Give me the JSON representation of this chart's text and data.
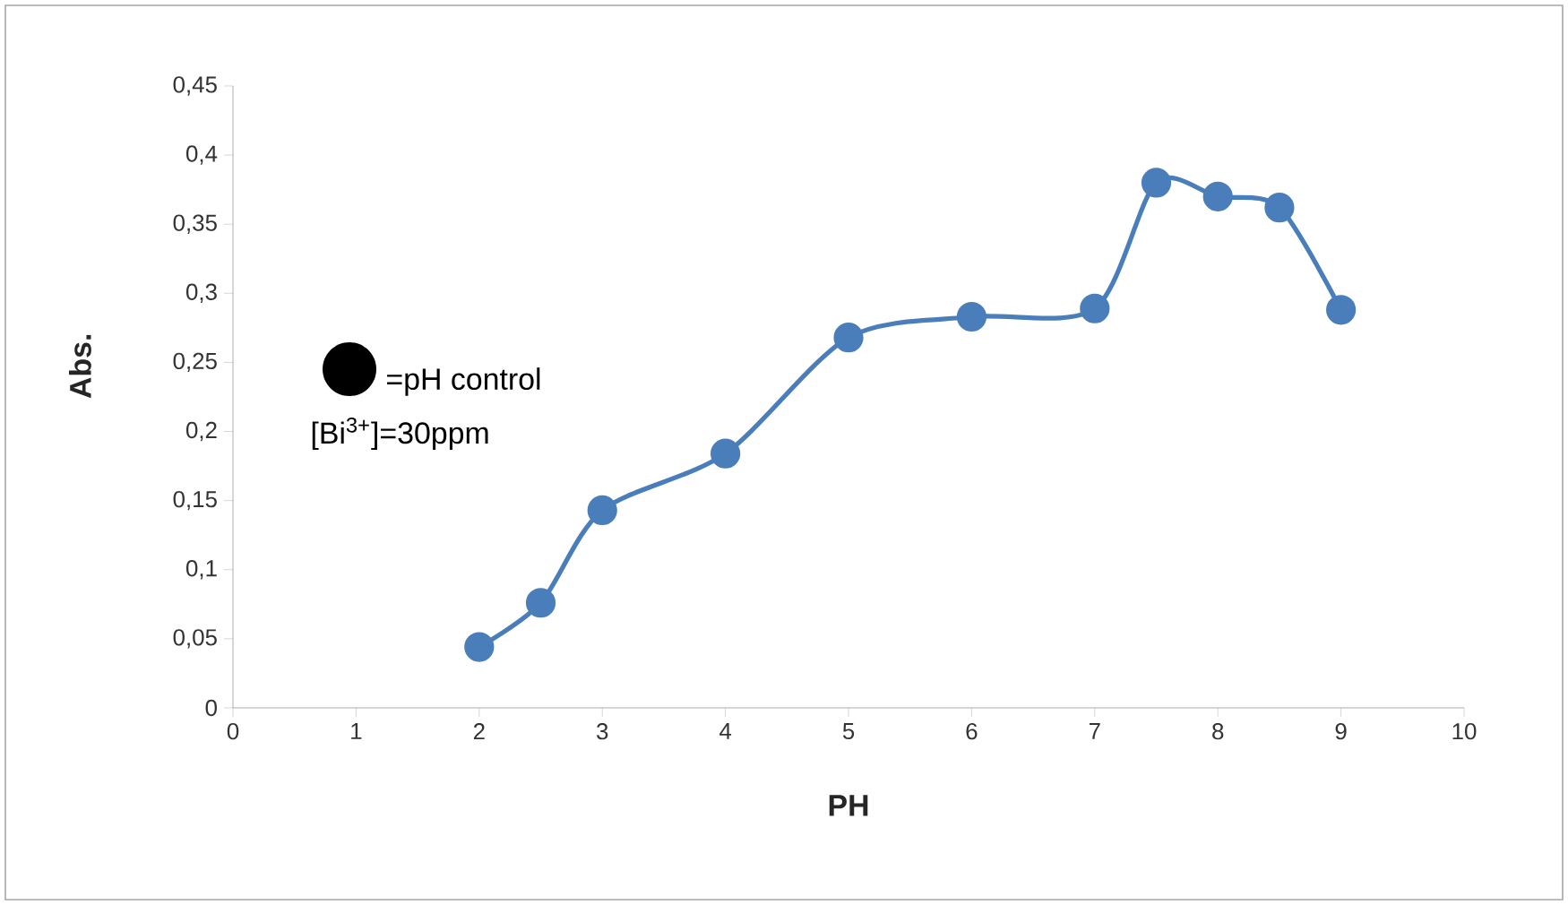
{
  "chart_data": {
    "type": "line",
    "xlabel": "PH",
    "ylabel": "Abs.",
    "x": [
      2,
      2.5,
      3,
      4,
      5,
      6,
      7,
      7.5,
      8,
      8.5,
      9
    ],
    "series": [
      {
        "color": "#4a7ebb",
        "values": [
          0.044,
          0.076,
          0.143,
          0.184,
          0.268,
          0.283,
          0.289,
          0.38,
          0.37,
          0.362,
          0.288
        ]
      }
    ],
    "xlim": [
      0,
      10
    ],
    "xticks": [
      0,
      1,
      2,
      3,
      4,
      5,
      6,
      7,
      8,
      9,
      10
    ],
    "ylim": [
      0,
      0.45
    ],
    "yticks": [
      0,
      {
        "value": 0.05,
        "label": "0,05"
      },
      {
        "value": 0.1,
        "label": "0,1"
      },
      {
        "value": 0.15,
        "label": "0,15"
      },
      {
        "value": 0.2,
        "label": "0,2"
      },
      {
        "value": 0.25,
        "label": "0,25"
      },
      {
        "value": 0.3,
        "label": "0,3"
      },
      {
        "value": 0.35,
        "label": "0,35"
      },
      {
        "value": 0.4,
        "label": "0,4"
      },
      {
        "value": 0.45,
        "label": "0,45"
      }
    ],
    "annotations": [
      "=pH control",
      "[Bi$^{3+}$]=30ppm"
    ],
    "marker": "circle",
    "grid": false
  }
}
